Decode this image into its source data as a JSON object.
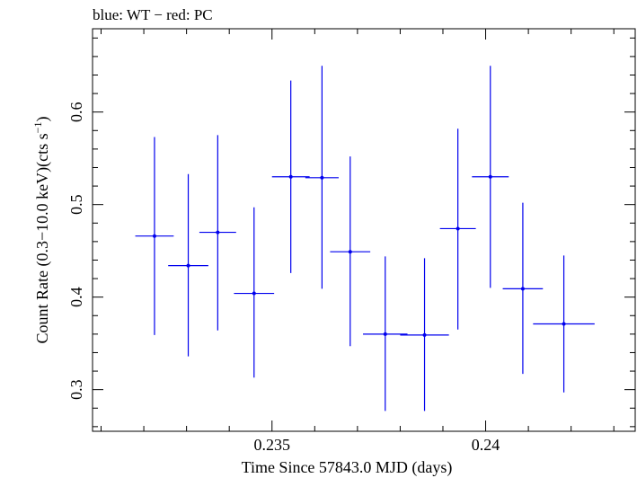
{
  "chart_data": {
    "type": "scatter",
    "title": "blue: WT − red: PC",
    "xlabel": "Time Since 57843.0 MJD (days)",
    "ylabel": "Count Rate (0.3−10.0 keV)(cts s",
    "ylabel_sup": "−1",
    "ylabel_close": ")",
    "xlim": [
      0.2308,
      0.2435
    ],
    "ylim": [
      0.255,
      0.69
    ],
    "x_ticks": [
      0.235,
      0.24
    ],
    "x_tick_labels": [
      "0.235",
      "0.24"
    ],
    "y_ticks": [
      0.3,
      0.4,
      0.5,
      0.6
    ],
    "y_tick_labels": [
      "0.3",
      "0.4",
      "0.5",
      "0.6"
    ],
    "grid": false,
    "series": [
      {
        "color": "#0000ee",
        "points": [
          {
            "x": 0.23225,
            "xerr": 0.00045,
            "y": 0.466,
            "ylo": 0.359,
            "yhi": 0.573
          },
          {
            "x": 0.23304,
            "xerr": 0.00047,
            "y": 0.434,
            "ylo": 0.336,
            "yhi": 0.533
          },
          {
            "x": 0.23373,
            "xerr": 0.00043,
            "y": 0.47,
            "ylo": 0.364,
            "yhi": 0.575
          },
          {
            "x": 0.23458,
            "xerr": 0.00047,
            "y": 0.404,
            "ylo": 0.313,
            "yhi": 0.497
          },
          {
            "x": 0.23544,
            "xerr": 0.00044,
            "y": 0.53,
            "ylo": 0.426,
            "yhi": 0.634
          },
          {
            "x": 0.23617,
            "xerr": 0.00039,
            "y": 0.529,
            "ylo": 0.409,
            "yhi": 0.65
          },
          {
            "x": 0.23683,
            "xerr": 0.00047,
            "y": 0.449,
            "ylo": 0.347,
            "yhi": 0.552
          },
          {
            "x": 0.23765,
            "xerr": 0.00052,
            "y": 0.36,
            "ylo": 0.277,
            "yhi": 0.444
          },
          {
            "x": 0.23857,
            "xerr": 0.00057,
            "y": 0.359,
            "ylo": 0.277,
            "yhi": 0.442
          },
          {
            "x": 0.23935,
            "xerr": 0.00042,
            "y": 0.474,
            "ylo": 0.365,
            "yhi": 0.582
          },
          {
            "x": 0.24011,
            "xerr": 0.00043,
            "y": 0.53,
            "ylo": 0.41,
            "yhi": 0.65
          },
          {
            "x": 0.24087,
            "xerr": 0.00047,
            "y": 0.409,
            "ylo": 0.317,
            "yhi": 0.502
          },
          {
            "x": 0.24183,
            "xerr": 0.00072,
            "y": 0.371,
            "ylo": 0.297,
            "yhi": 0.445
          }
        ]
      }
    ]
  }
}
